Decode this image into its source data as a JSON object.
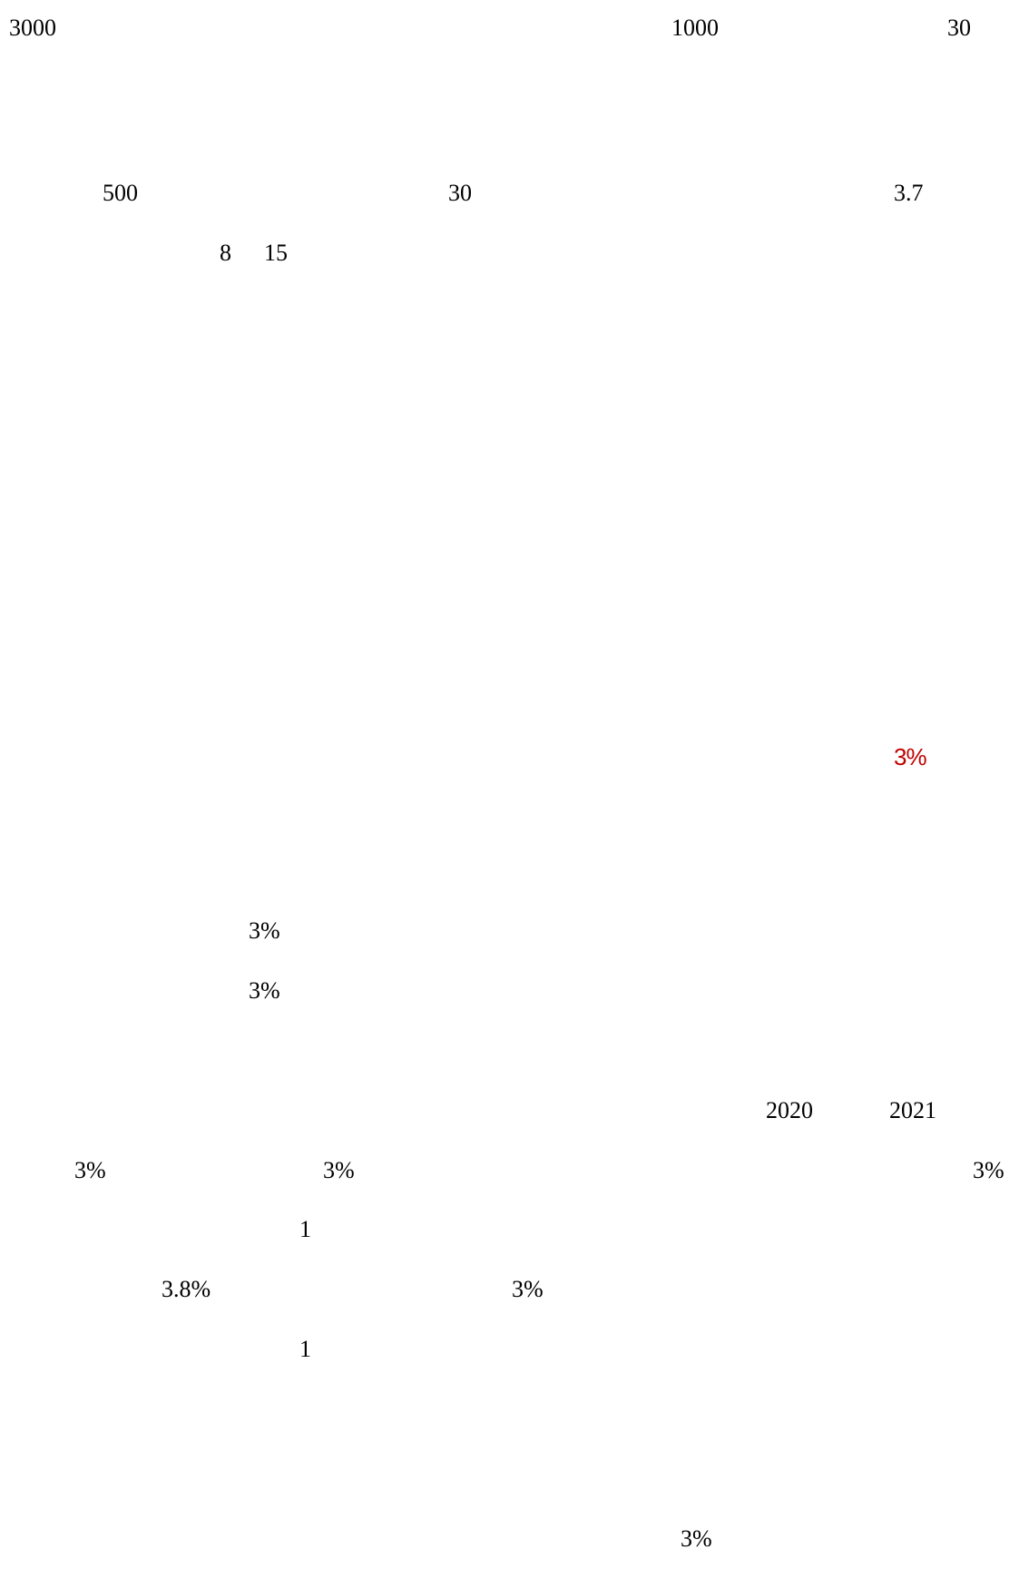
{
  "accent_color": "#c00000",
  "text_color": "#000000",
  "background_color": "#ffffff",
  "lines": [
    {
      "fragments": [
        "3000",
        "1000",
        "30"
      ]
    },
    {
      "fragments": [
        "500",
        "30",
        "3.7"
      ]
    },
    {
      "fragments": [
        "8",
        "15"
      ]
    },
    {
      "fragments": [
        "3%"
      ]
    },
    {
      "fragments": [
        "3%"
      ]
    },
    {
      "fragments": [
        "3%"
      ]
    },
    {
      "fragments": [
        "2020",
        "2021"
      ]
    },
    {
      "fragments": [
        "3%",
        "3%",
        "3%"
      ]
    },
    {
      "fragments": [
        "1"
      ]
    },
    {
      "fragments": [
        "3.8%",
        "3%"
      ]
    },
    {
      "fragments": [
        "1"
      ]
    },
    {
      "fragments": [
        "3%"
      ]
    }
  ]
}
